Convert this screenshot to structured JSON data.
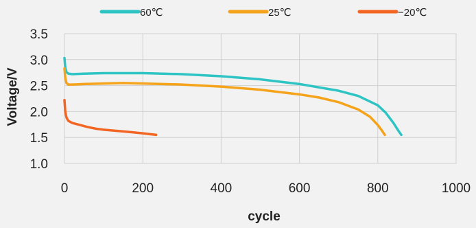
{
  "chart_data": {
    "type": "line",
    "title": "",
    "xlabel": "cycle",
    "ylabel": "Voltage/V",
    "xlim": [
      0,
      1000
    ],
    "ylim": [
      1.0,
      3.5
    ],
    "x_ticks": [
      "0",
      "200",
      "400",
      "600",
      "800",
      "1000"
    ],
    "y_ticks": [
      "1.0",
      "1.5",
      "2.0",
      "2.5",
      "3.0",
      "3.5"
    ],
    "grid": true,
    "legend_position": "top",
    "series": [
      {
        "name": "60℃",
        "color": "#2EC4C4",
        "x": [
          0,
          2,
          5,
          10,
          20,
          50,
          100,
          150,
          200,
          300,
          400,
          500,
          600,
          700,
          750,
          800,
          820,
          840,
          850,
          860
        ],
        "y": [
          3.03,
          2.85,
          2.76,
          2.73,
          2.72,
          2.73,
          2.74,
          2.74,
          2.74,
          2.72,
          2.68,
          2.62,
          2.53,
          2.4,
          2.3,
          2.12,
          1.98,
          1.78,
          1.66,
          1.55
        ]
      },
      {
        "name": "25℃",
        "color": "#F5A31A",
        "x": [
          0,
          2,
          5,
          10,
          20,
          50,
          100,
          150,
          200,
          300,
          400,
          500,
          600,
          650,
          700,
          750,
          780,
          800,
          810,
          818
        ],
        "y": [
          2.83,
          2.65,
          2.55,
          2.52,
          2.52,
          2.53,
          2.54,
          2.55,
          2.54,
          2.52,
          2.48,
          2.42,
          2.33,
          2.27,
          2.18,
          2.04,
          1.9,
          1.74,
          1.64,
          1.55
        ]
      },
      {
        "name": "−20℃",
        "color": "#F26522",
        "x": [
          0,
          2,
          4,
          6,
          10,
          20,
          40,
          60,
          80,
          100,
          130,
          160,
          200,
          234
        ],
        "y": [
          2.22,
          2.0,
          1.92,
          1.87,
          1.82,
          1.78,
          1.74,
          1.7,
          1.67,
          1.65,
          1.63,
          1.61,
          1.58,
          1.55
        ]
      }
    ]
  }
}
